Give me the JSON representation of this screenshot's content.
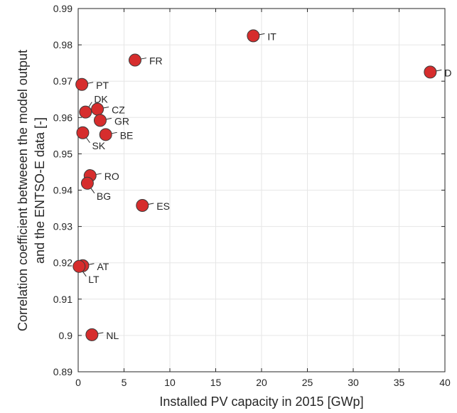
{
  "chart_data": {
    "type": "scatter",
    "title": "",
    "xlabel": "Installed PV capacity in 2015 [GWp]",
    "ylabel_lines": [
      "Correlation coefficient betweeen the model output",
      "and the ENTSO-E data [-]"
    ],
    "xlim": [
      0,
      40
    ],
    "ylim": [
      0.89,
      0.99
    ],
    "xticks": [
      0,
      5,
      10,
      15,
      20,
      25,
      30,
      35,
      40
    ],
    "yticks": [
      0.89,
      0.9,
      0.91,
      0.92,
      0.93,
      0.94,
      0.95,
      0.96,
      0.97,
      0.98,
      0.99
    ],
    "grid": true,
    "marker_color": "#d62d2d",
    "points": [
      {
        "label": "IT",
        "x": 19.1,
        "y": 0.9825,
        "label_side": "right"
      },
      {
        "label": "FR",
        "x": 6.2,
        "y": 0.9758,
        "label_side": "right"
      },
      {
        "label": "D",
        "x": 38.4,
        "y": 0.9725,
        "label_side": "right"
      },
      {
        "label": "PT",
        "x": 0.4,
        "y": 0.9691,
        "label_side": "right"
      },
      {
        "label": "DK",
        "x": 0.8,
        "y": 0.9615,
        "label_side": "up-right"
      },
      {
        "label": "CZ",
        "x": 2.1,
        "y": 0.9623,
        "label_side": "right"
      },
      {
        "label": "GR",
        "x": 2.4,
        "y": 0.9592,
        "label_side": "right"
      },
      {
        "label": "BE",
        "x": 3.0,
        "y": 0.9553,
        "label_side": "right"
      },
      {
        "label": "SK",
        "x": 0.5,
        "y": 0.9558,
        "label_side": "down-right"
      },
      {
        "label": "RO",
        "x": 1.3,
        "y": 0.944,
        "label_side": "right"
      },
      {
        "label": "BG",
        "x": 1.0,
        "y": 0.9419,
        "label_side": "down-right"
      },
      {
        "label": "ES",
        "x": 7.0,
        "y": 0.9358,
        "label_side": "right"
      },
      {
        "label": "AT",
        "x": 0.5,
        "y": 0.9192,
        "label_side": "right"
      },
      {
        "label": "LT",
        "x": 0.1,
        "y": 0.919,
        "label_side": "down-right"
      },
      {
        "label": "NL",
        "x": 1.5,
        "y": 0.9002,
        "label_side": "right"
      }
    ]
  }
}
